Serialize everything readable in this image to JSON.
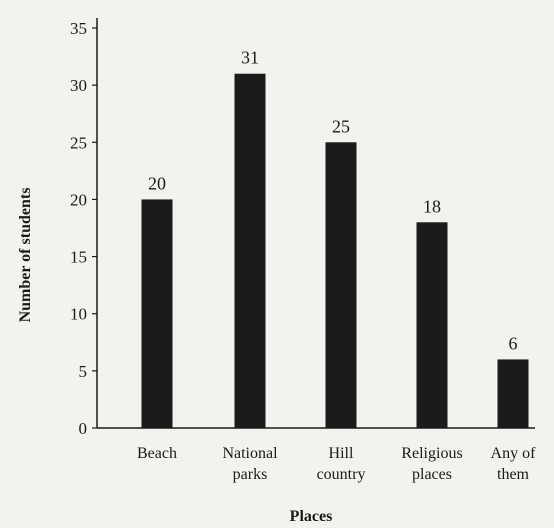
{
  "chart_data": {
    "type": "bar",
    "categories": [
      [
        "Beach"
      ],
      [
        "National",
        "parks"
      ],
      [
        "Hill",
        "country"
      ],
      [
        "Religious",
        "places"
      ],
      [
        "Any of",
        "them"
      ]
    ],
    "values": [
      20,
      31,
      25,
      18,
      6
    ],
    "data_labels": [
      "20",
      "31",
      "25",
      "18",
      "6"
    ],
    "xlabel": "Places",
    "ylabel": "Number of students",
    "ylim": [
      0,
      35
    ],
    "yticks": [
      0,
      5,
      10,
      15,
      20,
      25,
      30,
      35
    ],
    "bar_color": "#1c1a1a",
    "grid": false
  }
}
